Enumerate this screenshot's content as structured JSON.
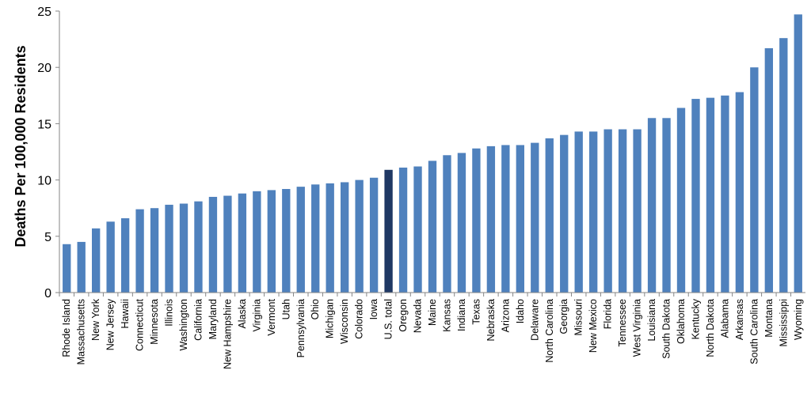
{
  "chart_data": {
    "type": "bar",
    "title": "",
    "xlabel": "",
    "ylabel": "Deaths Per 100,000 Residents",
    "ylim": [
      0,
      25
    ],
    "yticks": [
      0,
      5,
      10,
      15,
      20,
      25
    ],
    "grid": false,
    "legend": "none",
    "bar_color": "#4F81BD",
    "highlight_color": "#1F3864",
    "highlight_category": "U.S. total",
    "categories": [
      "Rhode Island",
      "Massachusetts",
      "New York",
      "New Jersey",
      "Hawaii",
      "Connecticut",
      "Minnesota",
      "Illinois",
      "Washington",
      "California",
      "Maryland",
      "New Hampshire",
      "Alaska",
      "Virginia",
      "Vermont",
      "Utah",
      "Pennsylvania",
      "Ohio",
      "Michigan",
      "Wisconsin",
      "Colorado",
      "Iowa",
      "U.S. total",
      "Oregon",
      "Nevada",
      "Maine",
      "Kansas",
      "Indiana",
      "Texas",
      "Nebraska",
      "Arizona",
      "Idaho",
      "Delaware",
      "North Carolina",
      "Georgia",
      "Missouri",
      "New Mexico",
      "Florida",
      "Tennessee",
      "West Virginia",
      "Louisiana",
      "South Dakota",
      "Oklahoma",
      "Kentucky",
      "North Dakota",
      "Alabama",
      "Arkansas",
      "South Carolina",
      "Montana",
      "Mississippi",
      "Wyoming"
    ],
    "values": [
      4.3,
      4.5,
      5.7,
      6.3,
      6.6,
      7.4,
      7.5,
      7.8,
      7.9,
      8.1,
      8.5,
      8.6,
      8.8,
      9.0,
      9.1,
      9.2,
      9.4,
      9.6,
      9.7,
      9.8,
      10.0,
      10.2,
      10.9,
      11.1,
      11.2,
      11.7,
      12.2,
      12.4,
      12.8,
      13.0,
      13.1,
      13.1,
      13.3,
      13.7,
      14.0,
      14.3,
      14.3,
      14.5,
      14.5,
      14.5,
      15.5,
      15.5,
      16.4,
      17.2,
      17.3,
      17.5,
      17.8,
      20.0,
      21.7,
      22.6,
      24.7
    ]
  }
}
